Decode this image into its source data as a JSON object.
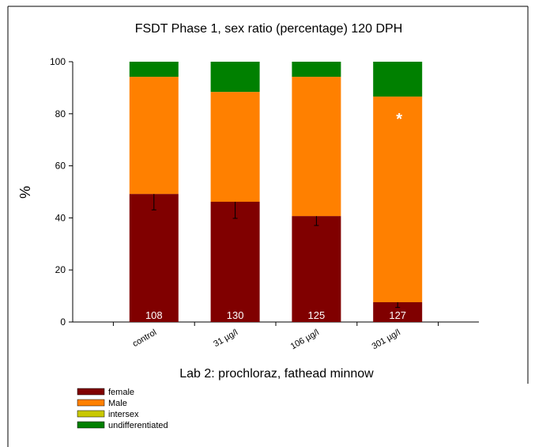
{
  "chart_data": {
    "type": "stacked_bar",
    "title": "FSDT Phase 1, sex ratio (percentage) 120 DPH",
    "ylabel": "%",
    "xlabel": "Lab 2: prochloraz, fathead minnow",
    "categories": [
      "control",
      "31 µg/l",
      "106 µg/l",
      "301 µg/l"
    ],
    "series": [
      {
        "name": "female",
        "color": "#800000",
        "values": [
          49.2,
          46.2,
          40.7,
          7.6
        ],
        "errors": [
          6.1,
          6.4,
          3.6,
          2
        ]
      },
      {
        "name": "Male",
        "color": "#ff8000",
        "values": [
          45,
          42.2,
          53.5,
          79
        ]
      },
      {
        "name": "intersex",
        "color": "#c8c800",
        "values": [
          0,
          0,
          0,
          0
        ]
      },
      {
        "name": "undifferentiated",
        "color": "#008000",
        "values": [
          5.8,
          11.6,
          5.8,
          13.4
        ]
      }
    ],
    "sample_sizes": [
      108,
      130,
      125,
      127
    ],
    "significance": [
      null,
      null,
      null,
      "*"
    ],
    "ylim": [
      0,
      100
    ],
    "yticks": [
      0,
      20,
      40,
      60,
      80,
      100
    ]
  }
}
